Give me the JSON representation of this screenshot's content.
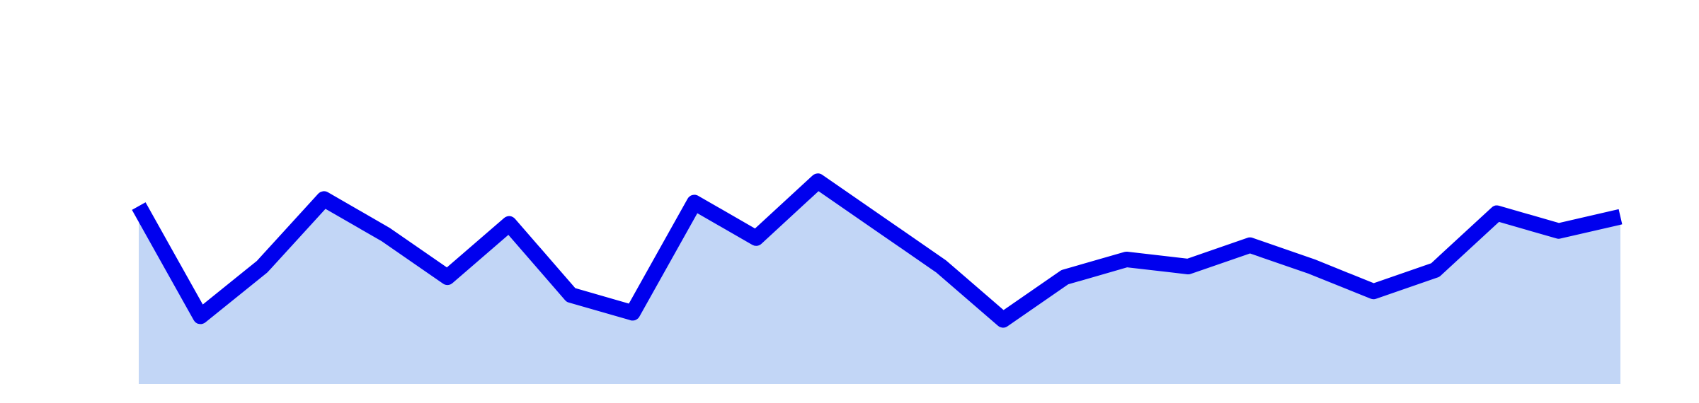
{
  "chart_data": {
    "type": "area",
    "title": "",
    "xlabel": "",
    "ylabel": "",
    "grid": false,
    "legend": "none",
    "x": [
      0,
      1,
      2,
      3,
      4,
      5,
      6,
      7,
      8,
      9,
      10,
      11,
      12,
      13,
      14,
      15,
      16,
      17,
      18,
      19,
      20,
      21,
      22,
      23,
      24
    ],
    "ylim": [
      0,
      100
    ],
    "series": [
      {
        "values": [
          50,
          19,
          33,
          52,
          42,
          30,
          45,
          25,
          20,
          51,
          41,
          57,
          45,
          33,
          18,
          30,
          35,
          33,
          39,
          33,
          26,
          32,
          48,
          43,
          47
        ],
        "stroke_color": "#0000ee",
        "fill_color": "#c2d6f6"
      }
    ]
  }
}
